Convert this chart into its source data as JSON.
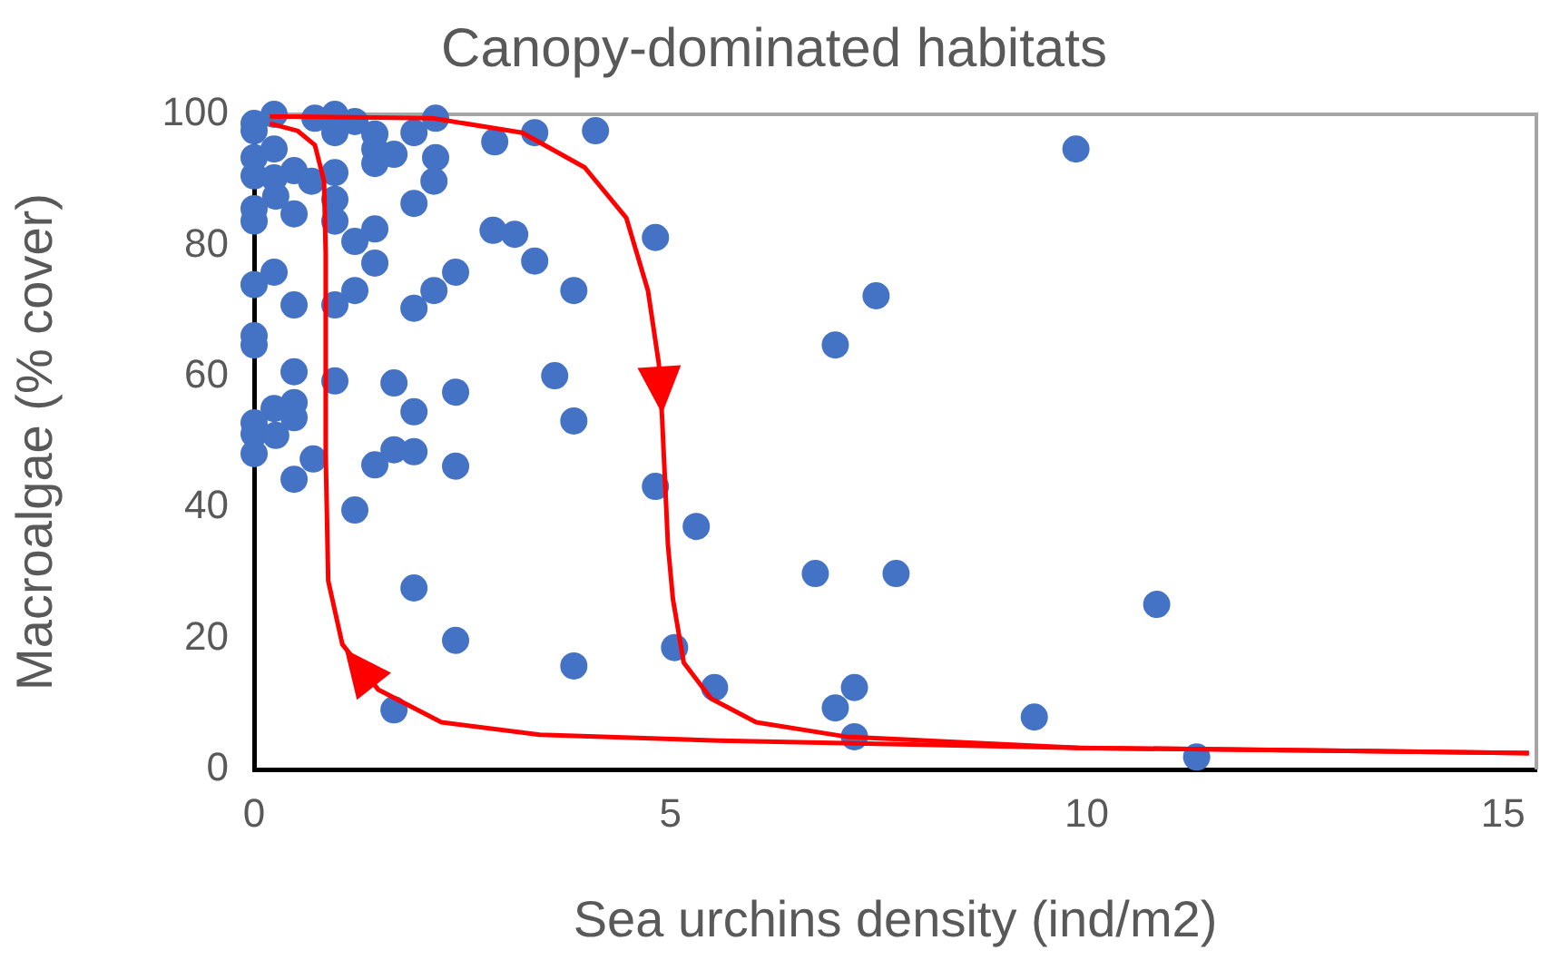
{
  "chart_data": {
    "type": "scatter",
    "title": "Canopy-dominated habitats",
    "xlabel": "Sea urchins density (ind/m2)",
    "ylabel": "Macroalgae (% cover)",
    "xlim": [
      0,
      15.4
    ],
    "xticks": [
      0,
      5,
      10,
      15
    ],
    "ylim": [
      0,
      100
    ],
    "yticks": [
      0,
      20,
      40,
      60,
      80,
      100
    ],
    "grid": false,
    "legend": false,
    "marker": "circle",
    "series": [
      {
        "type": "scatter",
        "color": "#4472c4",
        "x": [
          0,
          0,
          0.24,
          0.73,
          0.97,
          1.21,
          0.97,
          1.45,
          1.45,
          1.92,
          2.18,
          2.89,
          3.37,
          4.1,
          1.68,
          1.45,
          2.18,
          2.16,
          1.92,
          2.87,
          3.13,
          3.37,
          0.97,
          0.97,
          0.97,
          0.48,
          0.24,
          0,
          0,
          0.24,
          0.69,
          0.26,
          0.48,
          0,
          0,
          1.21,
          1.45,
          1.45,
          0.48,
          0.97,
          1.21,
          1.92,
          2.16,
          2.42,
          0.24,
          0,
          0,
          0,
          0.48,
          0.97,
          1.68,
          2.42,
          1.92,
          3.61,
          3.84,
          4.82,
          3.84,
          7.47,
          6.98,
          9.87,
          4.82,
          5.31,
          6.74,
          7.71,
          10.84,
          3.84,
          5.05,
          5.53,
          6.98,
          7.21,
          7.21,
          9.37,
          11.32,
          0.48,
          0.48,
          0.24,
          0,
          0,
          0.26,
          0,
          0.71,
          0.48,
          1.45,
          1.68,
          1.92,
          2.42,
          1.21,
          1.92,
          2.42,
          1.68
        ],
        "values": [
          98.6,
          97.5,
          100,
          99.4,
          100,
          98.9,
          97.2,
          97,
          94.7,
          97.2,
          99.4,
          95.8,
          97.2,
          97.5,
          93.9,
          92.5,
          93.4,
          89.8,
          86.4,
          82.3,
          81.7,
          77.6,
          91.1,
          87,
          83.7,
          91.4,
          94.7,
          93.4,
          90.6,
          90.3,
          89.8,
          87.5,
          84.8,
          85.6,
          83.7,
          80.6,
          82.5,
          77.3,
          70.9,
          70.9,
          73.1,
          70.4,
          73.1,
          75.9,
          75.9,
          74,
          66.2,
          64.8,
          60.7,
          59.3,
          59,
          57.6,
          54.6,
          60.1,
          73.1,
          81.2,
          53.2,
          72.3,
          64.8,
          94.7,
          43.2,
          37.1,
          29.9,
          29.9,
          25.2,
          15.8,
          18.6,
          12.5,
          9.4,
          12.5,
          5,
          8,
          1.9,
          56,
          53.7,
          55.1,
          52.9,
          51.2,
          51,
          48.2,
          47.4,
          44.3,
          46.5,
          48.8,
          48.5,
          46.3,
          39.6,
          27.7,
          19.7,
          9.1
        ]
      },
      {
        "type": "line",
        "color": "#ff0000",
        "marker": "none",
        "line_style": "solid",
        "x": [
          0.19,
          2.14,
          3.22,
          3.97,
          4.47,
          4.73,
          4.86,
          4.9,
          4.97,
          5.03,
          5.16,
          5.49,
          6.03,
          7.11,
          9.91,
          15.31
        ],
        "values": [
          99.7,
          99.4,
          97.2,
          91.9,
          84.2,
          73.1,
          62,
          53.7,
          34.3,
          26,
          16.3,
          10.8,
          7.2,
          5,
          3.3,
          2.5
        ]
      },
      {
        "type": "line",
        "color": "#ff0000",
        "marker": "none",
        "line_style": "solid",
        "x": [
          0.19,
          0.52,
          0.73,
          0.84,
          0.86,
          0.86,
          0.89,
          1.06,
          1.49,
          2.25,
          3.43,
          5.59,
          9.91,
          15.31
        ],
        "values": [
          98.6,
          97.5,
          95.3,
          89.8,
          78.7,
          48.2,
          28.8,
          19.1,
          12.2,
          7.2,
          5.3,
          4.4,
          3.3,
          2.5
        ]
      }
    ]
  }
}
